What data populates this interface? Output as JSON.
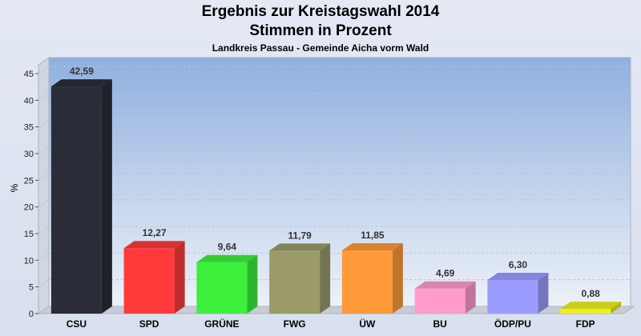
{
  "chart_data": {
    "type": "bar",
    "title": "Ergebnis zur Kreistagswahl 2014",
    "title2": "Stimmen in Prozent",
    "subtitle": "Landkreis Passau - Gemeinde Aicha vorm Wald",
    "ylabel": "%",
    "ylim": [
      0,
      48
    ],
    "yticks": [
      0,
      5,
      10,
      15,
      20,
      25,
      30,
      35,
      40,
      45
    ],
    "categories": [
      "CSU",
      "SPD",
      "GRÜNE",
      "FWG",
      "ÜW",
      "BU",
      "ÖDP/PU",
      "FDP"
    ],
    "values": [
      42.59,
      12.27,
      9.64,
      11.79,
      11.85,
      4.69,
      6.3,
      0.88
    ],
    "value_labels": [
      "42,59",
      "12,27",
      "9,64",
      "11,79",
      "11,85",
      "4,69",
      "6,30",
      "0,88"
    ],
    "colors": [
      "#2a2d38",
      "#ff3a3a",
      "#3cf03c",
      "#9b9b6a",
      "#ff9a3a",
      "#ff9ccc",
      "#9c9cff",
      "#f0f020"
    ],
    "grid": true
  }
}
